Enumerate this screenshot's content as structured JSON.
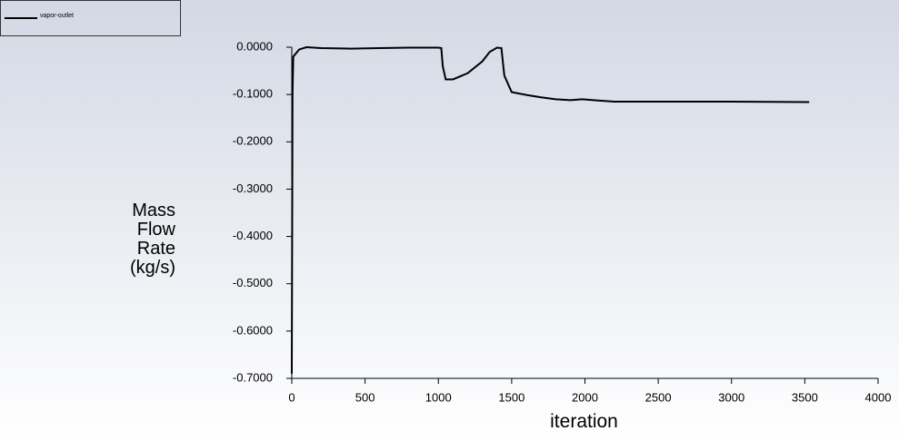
{
  "chart_data": {
    "type": "line",
    "x_label": "iteration",
    "y_label": "Mass Flow Rate (kg/s)",
    "x": [
      0,
      5,
      10,
      50,
      100,
      200,
      400,
      600,
      800,
      1000,
      1020,
      1030,
      1050,
      1100,
      1200,
      1300,
      1350,
      1400,
      1430,
      1450,
      1500,
      1600,
      1700,
      1800,
      1900,
      1980,
      2100,
      2200,
      2500,
      3000,
      3530
    ],
    "series": [
      {
        "name": "vapor-outlet",
        "color": "#000000",
        "values": [
          -0.69,
          -0.1,
          -0.02,
          -0.005,
          0.0,
          -0.002,
          -0.003,
          -0.002,
          -0.001,
          -0.001,
          -0.002,
          -0.04,
          -0.068,
          -0.068,
          -0.055,
          -0.03,
          -0.01,
          -0.001,
          -0.002,
          -0.06,
          -0.095,
          -0.101,
          -0.106,
          -0.11,
          -0.112,
          -0.11,
          -0.113,
          -0.115,
          -0.115,
          -0.115,
          -0.116
        ]
      }
    ],
    "xlim": [
      0,
      4000
    ],
    "ylim": [
      -0.7,
      0
    ],
    "xticks": [
      0,
      500,
      1000,
      1500,
      2000,
      2500,
      3000,
      3500,
      4000
    ],
    "yticks": [
      {
        "value": 0,
        "label": "0.0000"
      },
      {
        "value": -0.1,
        "label": "-0.1000"
      },
      {
        "value": -0.2,
        "label": "-0.2000"
      },
      {
        "value": -0.3,
        "label": "-0.3000"
      },
      {
        "value": -0.4,
        "label": "-0.4000"
      },
      {
        "value": -0.5,
        "label": "-0.5000"
      },
      {
        "value": -0.6,
        "label": "-0.6000"
      },
      {
        "value": -0.7,
        "label": "-0.7000"
      }
    ]
  }
}
